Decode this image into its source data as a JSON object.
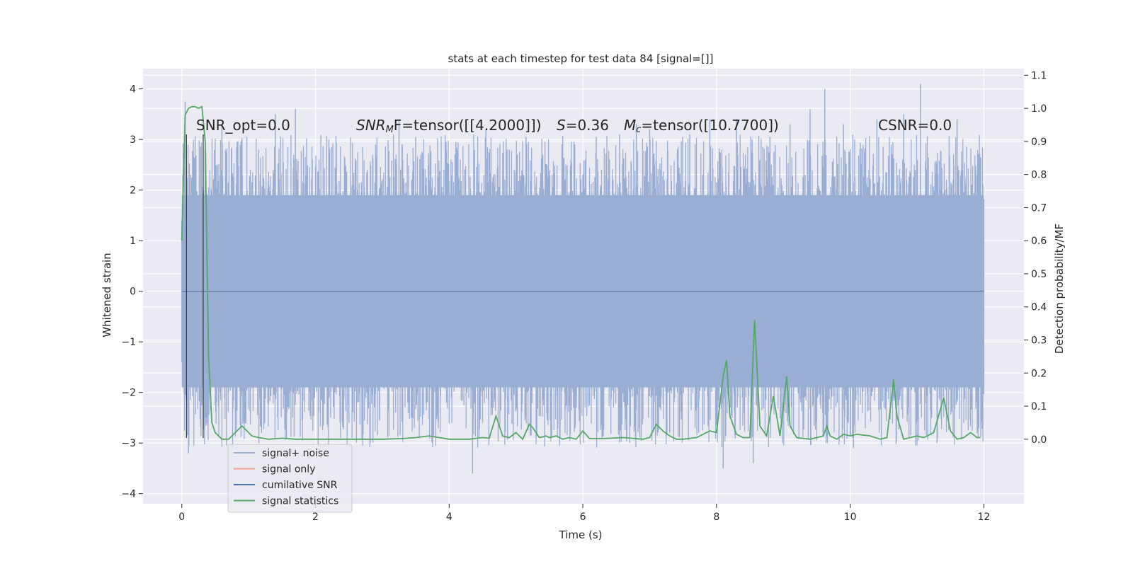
{
  "chart_data": {
    "type": "line",
    "title": "stats at each timestep for test data 84 [signal=[]]",
    "xlabel": "Time (s)",
    "ylabel_left": "Whitened strain",
    "ylabel_right": "Detection probability/MF",
    "xlim": [
      -0.58,
      12.6
    ],
    "ylim_left": [
      -4.2,
      4.4
    ],
    "ylim_right": [
      -0.195,
      1.12
    ],
    "xticks": [
      0,
      2,
      4,
      6,
      8,
      10,
      12
    ],
    "yticks_left": [
      -4,
      -3,
      -2,
      -1,
      0,
      1,
      2,
      3,
      4
    ],
    "yticks_right": [
      0.0,
      0.1,
      0.2,
      0.3,
      0.4,
      0.5,
      0.6,
      0.7,
      0.8,
      0.9,
      1.0,
      1.1
    ],
    "grid": true,
    "annotations": {
      "snr_opt": "SNR_opt=0.0",
      "snr_mf_sym": "SNR",
      "snr_mf_sub": "M",
      "snr_mf_rest": "F=tensor([[4.2000]])",
      "s_sym": "S",
      "s_rest": "=0.36",
      "mc_sym": "M",
      "mc_sub": "c",
      "mc_rest": "=tensor([10.7700])",
      "csnr": "CSNR=0.0"
    },
    "legend_position": "lower-left",
    "legend": [
      {
        "label": "signal+ noise",
        "color": "#9aaed3"
      },
      {
        "label": "signal only",
        "color": "#e8a38a"
      },
      {
        "label": "cumilative SNR",
        "color": "#4c72b0"
      },
      {
        "label": "signal statistics",
        "color": "#55a868"
      }
    ],
    "series": [
      {
        "name": "signal+ noise",
        "axis": "left",
        "color": "#9aaed3",
        "typical_range": [
          -1.9,
          1.9
        ],
        "spikes": [
          [
            0.05,
            3.75
          ],
          [
            0.1,
            -3.2
          ],
          [
            0.2,
            2.4
          ],
          [
            0.35,
            -2.5
          ],
          [
            0.6,
            3.3
          ],
          [
            0.9,
            3.0
          ],
          [
            1.15,
            2.8
          ],
          [
            1.4,
            3.5
          ],
          [
            1.7,
            3.6
          ],
          [
            2.2,
            3.0
          ],
          [
            2.5,
            -2.6
          ],
          [
            2.9,
            2.9
          ],
          [
            3.25,
            3.4
          ],
          [
            3.5,
            3.05
          ],
          [
            3.8,
            -2.6
          ],
          [
            4.1,
            2.95
          ],
          [
            4.35,
            -3.6
          ],
          [
            4.55,
            3.2
          ],
          [
            4.9,
            2.8
          ],
          [
            5.15,
            3.05
          ],
          [
            5.4,
            2.7
          ],
          [
            5.7,
            2.6
          ],
          [
            6.2,
            3.05
          ],
          [
            6.55,
            3.1
          ],
          [
            6.8,
            3.3
          ],
          [
            7.0,
            3.2
          ],
          [
            7.3,
            -2.8
          ],
          [
            7.6,
            3.1
          ],
          [
            7.9,
            3.4
          ],
          [
            8.1,
            -3.5
          ],
          [
            8.3,
            3.4
          ],
          [
            8.55,
            -3.4
          ],
          [
            8.8,
            3.05
          ],
          [
            9.1,
            3.3
          ],
          [
            9.4,
            3.6
          ],
          [
            9.62,
            4.0
          ],
          [
            9.9,
            3.3
          ],
          [
            10.05,
            -3.1
          ],
          [
            10.4,
            3.4
          ],
          [
            10.8,
            3.5
          ],
          [
            11.05,
            4.1
          ],
          [
            11.3,
            -3.0
          ],
          [
            11.6,
            3.4
          ],
          [
            11.9,
            2.3
          ]
        ]
      },
      {
        "name": "signal only",
        "axis": "left",
        "color": "#e8a38a",
        "x": [
          0,
          12
        ],
        "y": [
          0,
          0
        ]
      },
      {
        "name": "cumilative SNR",
        "axis": "left",
        "color": "#4c72b0",
        "x": [
          0,
          12
        ],
        "y": [
          0,
          0
        ]
      },
      {
        "name": "signal statistics",
        "axis": "right",
        "color": "#55a868",
        "x": [
          0.0,
          0.05,
          0.1,
          0.15,
          0.2,
          0.25,
          0.3,
          0.35,
          0.4,
          0.45,
          0.5,
          0.55,
          0.6,
          0.7,
          0.8,
          0.9,
          0.95,
          1.05,
          1.15,
          1.3,
          1.5,
          1.7,
          2.0,
          2.5,
          3.0,
          3.3,
          3.5,
          3.7,
          4.0,
          4.3,
          4.5,
          4.6,
          4.7,
          4.8,
          4.9,
          5.0,
          5.1,
          5.2,
          5.25,
          5.35,
          5.45,
          5.5,
          5.6,
          5.7,
          5.8,
          5.9,
          6.0,
          6.1,
          6.3,
          6.6,
          6.9,
          7.0,
          7.1,
          7.2,
          7.3,
          7.4,
          7.5,
          7.7,
          7.9,
          8.0,
          8.1,
          8.15,
          8.2,
          8.3,
          8.4,
          8.5,
          8.57,
          8.65,
          8.75,
          8.85,
          8.95,
          9.05,
          9.1,
          9.2,
          9.4,
          9.6,
          9.65,
          9.7,
          9.8,
          9.9,
          10.0,
          10.1,
          10.3,
          10.45,
          10.55,
          10.65,
          10.7,
          10.8,
          10.9,
          11.0,
          11.1,
          11.25,
          11.4,
          11.5,
          11.6,
          11.7,
          11.8,
          11.9,
          11.95
        ],
        "y": [
          0.6,
          0.98,
          1.0,
          1.005,
          1.005,
          1.0,
          1.005,
          0.9,
          0.25,
          0.05,
          0.02,
          0.01,
          0.0,
          0.0,
          0.02,
          0.04,
          0.03,
          0.01,
          0.005,
          0.0,
          0.003,
          0.0,
          0.0,
          0.0,
          0.0,
          0.002,
          0.005,
          0.01,
          0.0,
          0.0,
          0.005,
          0.003,
          0.07,
          0.01,
          0.005,
          0.02,
          0.0,
          0.045,
          0.035,
          0.005,
          0.01,
          0.005,
          0.01,
          0.0,
          0.005,
          0.0,
          0.025,
          0.002,
          0.002,
          0.005,
          0.0,
          0.005,
          0.045,
          0.025,
          0.01,
          0.0,
          0.0,
          0.005,
          0.025,
          0.02,
          0.19,
          0.24,
          0.07,
          0.015,
          0.005,
          0.005,
          0.36,
          0.04,
          0.01,
          0.13,
          0.01,
          0.19,
          0.04,
          0.005,
          0.0,
          0.01,
          0.04,
          0.01,
          0.0,
          0.015,
          0.01,
          0.015,
          0.01,
          0.0,
          0.005,
          0.18,
          0.07,
          0.0,
          0.005,
          0.01,
          0.005,
          0.02,
          0.125,
          0.025,
          0.0,
          0.005,
          0.02,
          0.005,
          0.005
        ]
      }
    ]
  }
}
